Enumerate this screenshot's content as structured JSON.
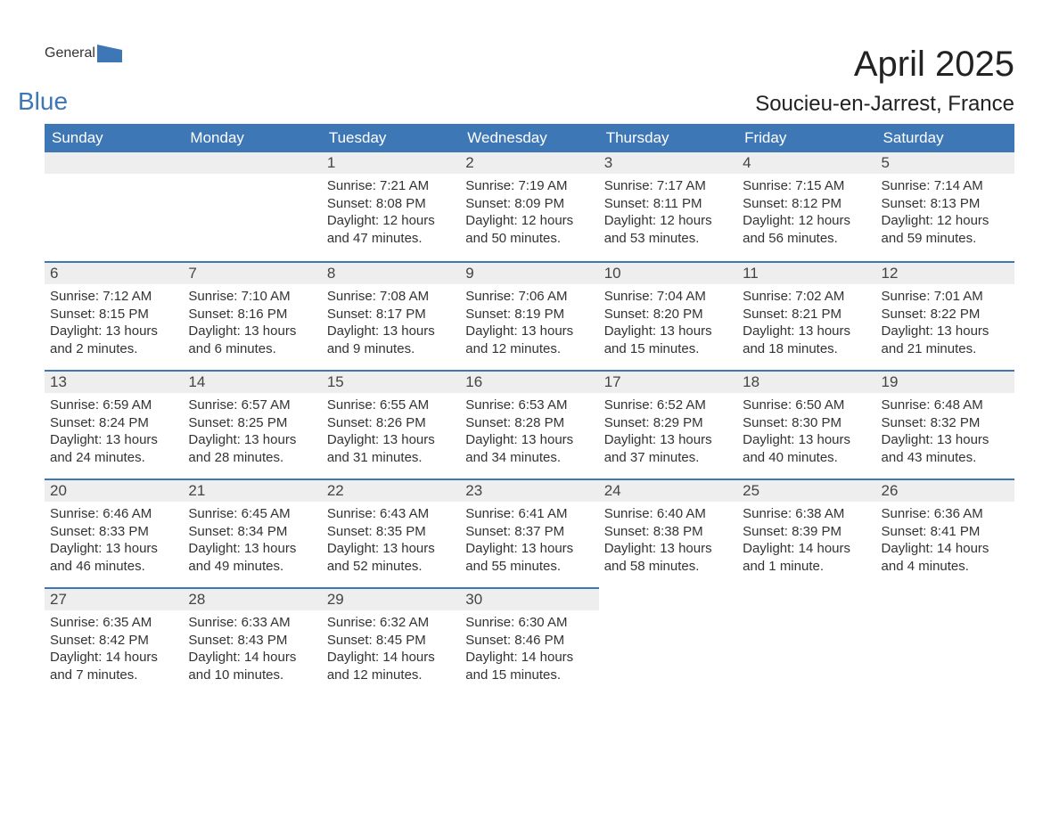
{
  "logo": {
    "text1": "General",
    "text2": "Blue",
    "icon_color": "#3d77b6"
  },
  "title": {
    "month": "April 2025",
    "location": "Soucieu-en-Jarrest, France"
  },
  "colors": {
    "header_bg": "#3d77b6",
    "header_fg": "#ffffff",
    "daynum_bg": "#eeeeee",
    "row_border": "#3d77b6",
    "text": "#333333",
    "background": "#ffffff"
  },
  "typography": {
    "title_fontsize": 40,
    "location_fontsize": 24,
    "header_fontsize": 17,
    "daynum_fontsize": 17,
    "body_fontsize": 15
  },
  "calendar": {
    "type": "table",
    "columns": [
      "Sunday",
      "Monday",
      "Tuesday",
      "Wednesday",
      "Thursday",
      "Friday",
      "Saturday"
    ],
    "weeks": [
      [
        null,
        null,
        {
          "n": 1,
          "sunrise": "7:21 AM",
          "sunset": "8:08 PM",
          "daylight": "12 hours and 47 minutes."
        },
        {
          "n": 2,
          "sunrise": "7:19 AM",
          "sunset": "8:09 PM",
          "daylight": "12 hours and 50 minutes."
        },
        {
          "n": 3,
          "sunrise": "7:17 AM",
          "sunset": "8:11 PM",
          "daylight": "12 hours and 53 minutes."
        },
        {
          "n": 4,
          "sunrise": "7:15 AM",
          "sunset": "8:12 PM",
          "daylight": "12 hours and 56 minutes."
        },
        {
          "n": 5,
          "sunrise": "7:14 AM",
          "sunset": "8:13 PM",
          "daylight": "12 hours and 59 minutes."
        }
      ],
      [
        {
          "n": 6,
          "sunrise": "7:12 AM",
          "sunset": "8:15 PM",
          "daylight": "13 hours and 2 minutes."
        },
        {
          "n": 7,
          "sunrise": "7:10 AM",
          "sunset": "8:16 PM",
          "daylight": "13 hours and 6 minutes."
        },
        {
          "n": 8,
          "sunrise": "7:08 AM",
          "sunset": "8:17 PM",
          "daylight": "13 hours and 9 minutes."
        },
        {
          "n": 9,
          "sunrise": "7:06 AM",
          "sunset": "8:19 PM",
          "daylight": "13 hours and 12 minutes."
        },
        {
          "n": 10,
          "sunrise": "7:04 AM",
          "sunset": "8:20 PM",
          "daylight": "13 hours and 15 minutes."
        },
        {
          "n": 11,
          "sunrise": "7:02 AM",
          "sunset": "8:21 PM",
          "daylight": "13 hours and 18 minutes."
        },
        {
          "n": 12,
          "sunrise": "7:01 AM",
          "sunset": "8:22 PM",
          "daylight": "13 hours and 21 minutes."
        }
      ],
      [
        {
          "n": 13,
          "sunrise": "6:59 AM",
          "sunset": "8:24 PM",
          "daylight": "13 hours and 24 minutes."
        },
        {
          "n": 14,
          "sunrise": "6:57 AM",
          "sunset": "8:25 PM",
          "daylight": "13 hours and 28 minutes."
        },
        {
          "n": 15,
          "sunrise": "6:55 AM",
          "sunset": "8:26 PM",
          "daylight": "13 hours and 31 minutes."
        },
        {
          "n": 16,
          "sunrise": "6:53 AM",
          "sunset": "8:28 PM",
          "daylight": "13 hours and 34 minutes."
        },
        {
          "n": 17,
          "sunrise": "6:52 AM",
          "sunset": "8:29 PM",
          "daylight": "13 hours and 37 minutes."
        },
        {
          "n": 18,
          "sunrise": "6:50 AM",
          "sunset": "8:30 PM",
          "daylight": "13 hours and 40 minutes."
        },
        {
          "n": 19,
          "sunrise": "6:48 AM",
          "sunset": "8:32 PM",
          "daylight": "13 hours and 43 minutes."
        }
      ],
      [
        {
          "n": 20,
          "sunrise": "6:46 AM",
          "sunset": "8:33 PM",
          "daylight": "13 hours and 46 minutes."
        },
        {
          "n": 21,
          "sunrise": "6:45 AM",
          "sunset": "8:34 PM",
          "daylight": "13 hours and 49 minutes."
        },
        {
          "n": 22,
          "sunrise": "6:43 AM",
          "sunset": "8:35 PM",
          "daylight": "13 hours and 52 minutes."
        },
        {
          "n": 23,
          "sunrise": "6:41 AM",
          "sunset": "8:37 PM",
          "daylight": "13 hours and 55 minutes."
        },
        {
          "n": 24,
          "sunrise": "6:40 AM",
          "sunset": "8:38 PM",
          "daylight": "13 hours and 58 minutes."
        },
        {
          "n": 25,
          "sunrise": "6:38 AM",
          "sunset": "8:39 PM",
          "daylight": "14 hours and 1 minute."
        },
        {
          "n": 26,
          "sunrise": "6:36 AM",
          "sunset": "8:41 PM",
          "daylight": "14 hours and 4 minutes."
        }
      ],
      [
        {
          "n": 27,
          "sunrise": "6:35 AM",
          "sunset": "8:42 PM",
          "daylight": "14 hours and 7 minutes."
        },
        {
          "n": 28,
          "sunrise": "6:33 AM",
          "sunset": "8:43 PM",
          "daylight": "14 hours and 10 minutes."
        },
        {
          "n": 29,
          "sunrise": "6:32 AM",
          "sunset": "8:45 PM",
          "daylight": "14 hours and 12 minutes."
        },
        {
          "n": 30,
          "sunrise": "6:30 AM",
          "sunset": "8:46 PM",
          "daylight": "14 hours and 15 minutes."
        },
        null,
        null,
        null
      ]
    ],
    "labels": {
      "sunrise": "Sunrise: ",
      "sunset": "Sunset: ",
      "daylight": "Daylight: "
    }
  }
}
